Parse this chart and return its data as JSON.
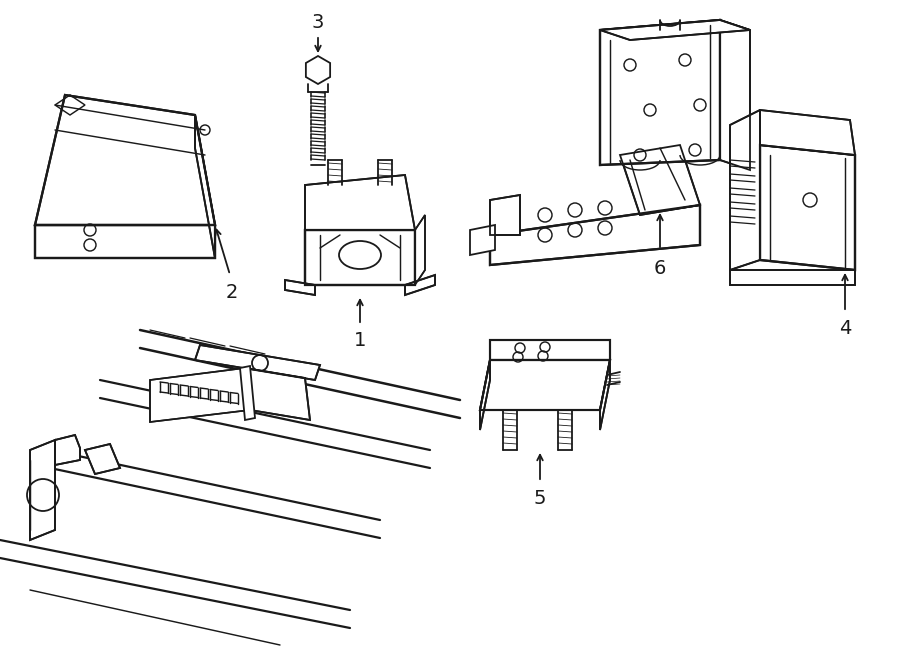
{
  "background_color": "#ffffff",
  "line_color": "#1a1a1a",
  "line_width": 1.3,
  "callout_fontsize": 14,
  "figsize": [
    9.0,
    6.61
  ],
  "dpi": 100
}
